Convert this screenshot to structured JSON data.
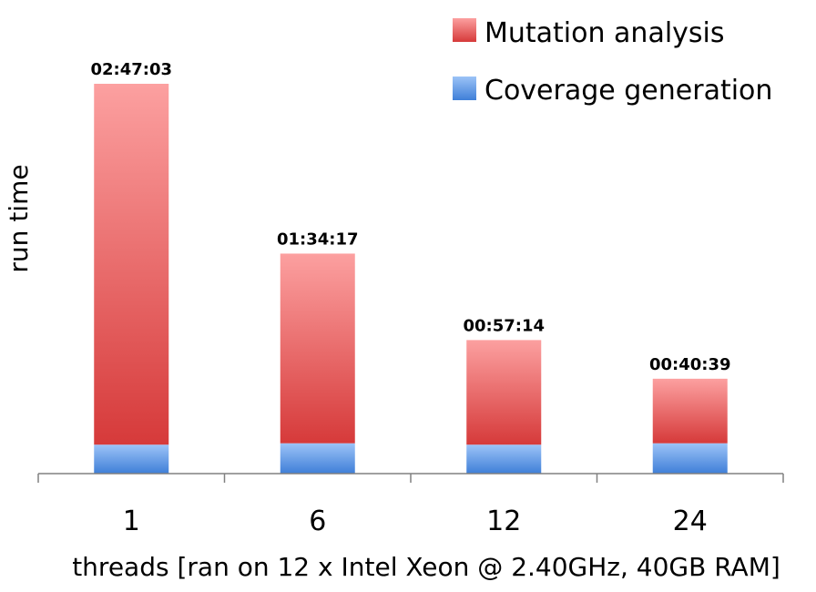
{
  "chart_data": {
    "type": "bar",
    "stacked": true,
    "categories": [
      "1",
      "6",
      "12",
      "24"
    ],
    "series": [
      {
        "name": "Coverage generation",
        "values": [
          12.4,
          13.0,
          12.4,
          13.0
        ]
      },
      {
        "name": "Mutation analysis",
        "values": [
          154.65,
          81.28,
          44.83,
          27.65
        ]
      }
    ],
    "totals": [
      167.05,
      94.28,
      57.23,
      40.65
    ],
    "data_labels": [
      "02:47:03",
      "01:34:17",
      "00:57:14",
      "00:40:39"
    ],
    "xlabel": "threads [ran on 12 x Intel Xeon @ 2.40GHz, 40GB RAM]",
    "ylabel": "run time",
    "ylim": [
      0,
      200
    ],
    "grid": false,
    "legend_position": "top-right",
    "colors": {
      "coverage_top": "#9cc3f7",
      "coverage_bottom": "#3f7fd8",
      "mutation_top": "#fca0a0",
      "mutation_bottom": "#d63a3a",
      "axis": "#808080"
    }
  }
}
